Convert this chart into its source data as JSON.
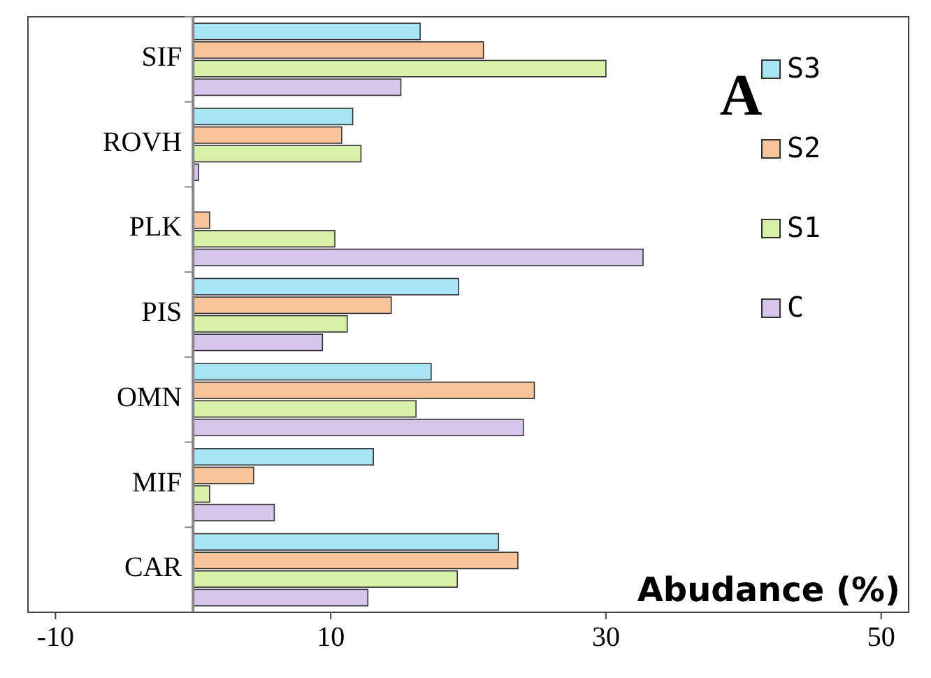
{
  "chart_data": {
    "type": "bar",
    "orientation": "horizontal",
    "xlabel": "Abudance (%)",
    "annotations": [
      "A"
    ],
    "categories": [
      "SIF",
      "ROVH",
      "PLK",
      "PIS",
      "OMN",
      "MIF",
      "CAR"
    ],
    "series": [
      {
        "name": "S3",
        "color": "#a9e6f5",
        "values": [
          16.5,
          11.6,
          0,
          19.3,
          17.3,
          13.1,
          22.2
        ]
      },
      {
        "name": "S2",
        "color": "#f9c49a",
        "values": [
          21.1,
          10.8,
          1.2,
          14.4,
          24.8,
          4.4,
          23.6
        ]
      },
      {
        "name": "S1",
        "color": "#d9f0a8",
        "values": [
          30,
          12.2,
          10.3,
          11.2,
          16.2,
          1.2,
          19.2
        ]
      },
      {
        "name": "C",
        "color": "#d6c6ec",
        "values": [
          15.1,
          0.4,
          32.7,
          9.4,
          24,
          5.9,
          12.7
        ]
      }
    ],
    "xlim": [
      -12,
      52
    ],
    "xticks": [
      -10,
      10,
      30,
      50
    ],
    "grid": false,
    "legend": "top right"
  }
}
